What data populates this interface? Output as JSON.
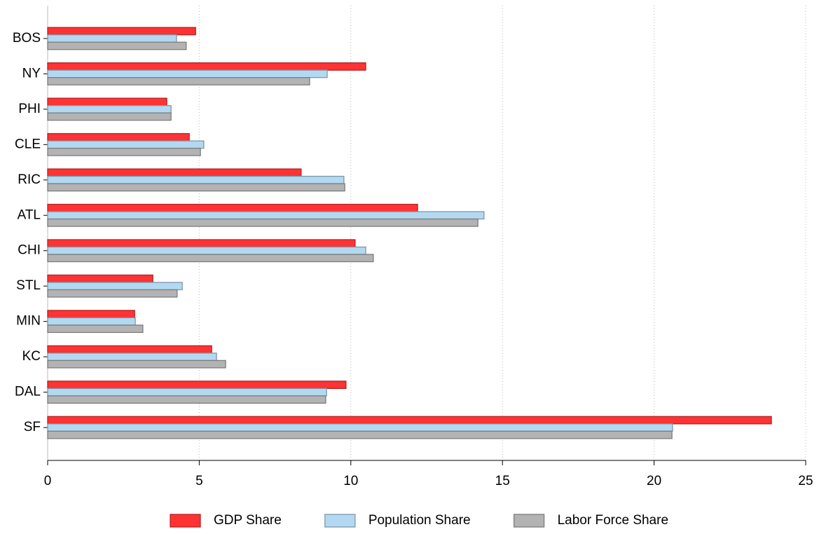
{
  "chart_data": {
    "type": "hbar",
    "categories": [
      "BOS",
      "NY",
      "PHI",
      "CLE",
      "RIC",
      "ATL",
      "CHI",
      "STL",
      "MIN",
      "KC",
      "DAL",
      "SF"
    ],
    "series": [
      {
        "name": "GDP Share",
        "color": "#ff3333",
        "values": [
          4.88,
          10.49,
          3.93,
          4.67,
          8.36,
          12.2,
          10.14,
          3.47,
          2.87,
          5.41,
          9.84,
          23.87
        ]
      },
      {
        "name": "Population Share",
        "color": "#b3d9f2",
        "values": [
          4.25,
          9.22,
          4.07,
          5.15,
          9.77,
          14.39,
          10.49,
          4.44,
          2.89,
          5.57,
          9.2,
          20.61
        ]
      },
      {
        "name": "Labor Force Share",
        "color": "#b3b3b3",
        "values": [
          4.57,
          8.64,
          4.07,
          5.04,
          9.8,
          14.19,
          10.74,
          4.27,
          3.14,
          5.87,
          9.17,
          20.59
        ]
      }
    ],
    "xlim": [
      0,
      25
    ],
    "xticks": [
      0,
      5,
      10,
      15,
      20,
      25
    ],
    "grid": true,
    "legend": "bottom"
  }
}
